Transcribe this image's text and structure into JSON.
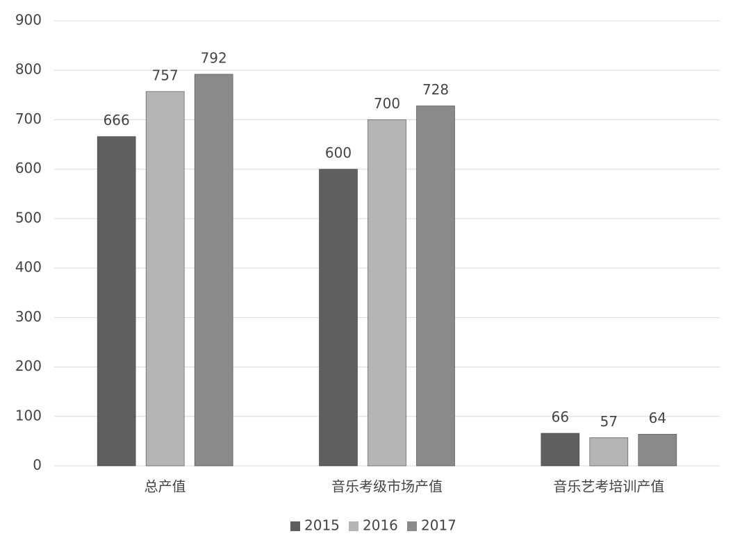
{
  "chart_data": {
    "type": "bar",
    "categories": [
      "总产值",
      "音乐考级市场产值",
      "音乐艺考培训产值"
    ],
    "series": [
      {
        "name": "2015",
        "color": "#5f5f5f",
        "values": [
          666,
          600,
          66
        ]
      },
      {
        "name": "2016",
        "color": "#b5b5b5",
        "values": [
          757,
          700,
          57
        ]
      },
      {
        "name": "2017",
        "color": "#8a8a8a",
        "values": [
          792,
          728,
          64
        ]
      }
    ],
    "ylim": [
      0,
      900
    ],
    "yticks": [
      0,
      100,
      200,
      300,
      400,
      500,
      600,
      700,
      800,
      900
    ],
    "grid": true,
    "legend": "bottom"
  }
}
